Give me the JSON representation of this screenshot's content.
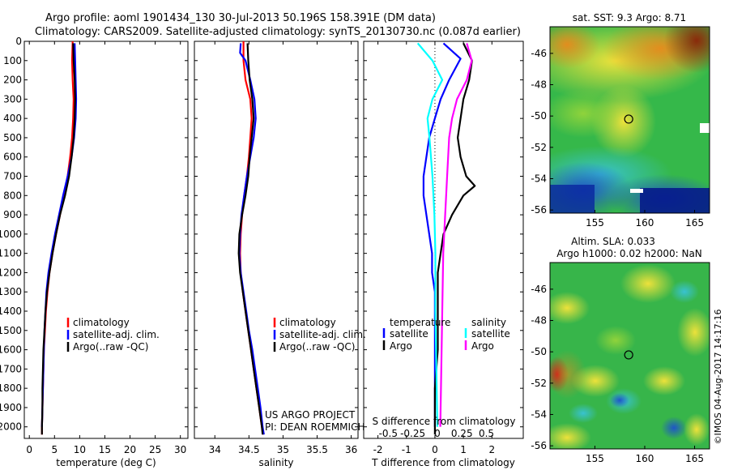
{
  "header": {
    "line1": "Argo profile: aoml 1901434_130 30-Jul-2013 50.196S 158.391E (DM data)",
    "line2": "Climatology: CARS2009. Satellite-adjusted climatology: synTS_20130730.nc (0.087d earlier)"
  },
  "credit": "©IMOS 04-Aug-2017 14:17:16",
  "project": {
    "line1": "US ARGO PROJECT",
    "line2": "PI: DEAN ROEMMICH"
  },
  "colors": {
    "red": "#ff0000",
    "blue": "#0000ff",
    "black": "#000000",
    "cyan": "#00ffff",
    "magenta": "#ff00ff"
  },
  "depth_ticks": [
    0,
    100,
    200,
    300,
    400,
    500,
    600,
    700,
    800,
    900,
    1000,
    1100,
    1200,
    1300,
    1400,
    1500,
    1600,
    1700,
    1800,
    1900,
    2000
  ],
  "chart_data": [
    {
      "type": "line",
      "id": "temperature",
      "xlabel": "temperature (deg C)",
      "xlim": [
        -1,
        31.5
      ],
      "ylim": [
        0,
        2060
      ],
      "y_reversed": true,
      "xticks": [
        0,
        5,
        10,
        15,
        20,
        25,
        30
      ],
      "legend": [
        "climatology",
        "satellite-adj. clim.",
        "Argo(..raw -QC)"
      ],
      "legend_placement": "lower-center",
      "series": [
        {
          "name": "climatology",
          "color": "red",
          "points": [
            [
              8.6,
              0
            ],
            [
              8.5,
              100
            ],
            [
              8.6,
              200
            ],
            [
              8.8,
              300
            ],
            [
              8.7,
              400
            ],
            [
              8.5,
              500
            ],
            [
              8.1,
              600
            ],
            [
              7.6,
              700
            ],
            [
              6.9,
              800
            ],
            [
              6.1,
              900
            ],
            [
              5.3,
              1000
            ],
            [
              4.6,
              1100
            ],
            [
              4.0,
              1200
            ],
            [
              3.6,
              1300
            ],
            [
              3.3,
              1400
            ],
            [
              3.1,
              1500
            ],
            [
              2.9,
              1600
            ],
            [
              2.8,
              1700
            ],
            [
              2.7,
              1800
            ],
            [
              2.6,
              1900
            ],
            [
              2.5,
              2000
            ],
            [
              2.5,
              2040
            ]
          ]
        },
        {
          "name": "satellite-adj. clim.",
          "color": "blue",
          "points": [
            [
              9.0,
              10
            ],
            [
              9.1,
              100
            ],
            [
              9.2,
              200
            ],
            [
              9.3,
              300
            ],
            [
              9.2,
              400
            ],
            [
              8.9,
              500
            ],
            [
              8.4,
              600
            ],
            [
              7.6,
              700
            ],
            [
              6.7,
              800
            ],
            [
              5.9,
              900
            ],
            [
              5.1,
              1000
            ],
            [
              4.4,
              1100
            ],
            [
              3.8,
              1200
            ],
            [
              3.4,
              1300
            ],
            [
              3.2,
              1400
            ],
            [
              3.0,
              1500
            ],
            [
              2.9,
              1600
            ],
            [
              2.8,
              1700
            ],
            [
              2.7,
              1800
            ],
            [
              2.6,
              1900
            ],
            [
              2.5,
              2000
            ]
          ]
        },
        {
          "name": "Argo(..raw -QC)",
          "color": "black",
          "points": [
            [
              8.7,
              10
            ],
            [
              8.8,
              100
            ],
            [
              9.0,
              200
            ],
            [
              9.1,
              300
            ],
            [
              9.0,
              400
            ],
            [
              8.8,
              500
            ],
            [
              8.4,
              600
            ],
            [
              7.9,
              700
            ],
            [
              7.1,
              800
            ],
            [
              6.1,
              900
            ],
            [
              5.3,
              1000
            ],
            [
              4.6,
              1100
            ],
            [
              4.0,
              1200
            ],
            [
              3.5,
              1300
            ],
            [
              3.2,
              1400
            ],
            [
              3.0,
              1500
            ],
            [
              2.8,
              1600
            ],
            [
              2.7,
              1700
            ],
            [
              2.6,
              1800
            ],
            [
              2.6,
              1900
            ],
            [
              2.5,
              2000
            ],
            [
              2.5,
              2040
            ]
          ]
        }
      ]
    },
    {
      "type": "line",
      "id": "salinity",
      "xlabel": "salinity",
      "xlim": [
        33.7,
        36.1
      ],
      "ylim": [
        0,
        2060
      ],
      "y_reversed": true,
      "xticks": [
        34,
        34.5,
        35,
        35.5,
        36
      ],
      "xtick_labels": [
        "34",
        "34.5",
        "35",
        "35.5",
        "36"
      ],
      "legend": [
        "climatology",
        "satellite-adj. clim.",
        "Argo(..raw -QC)"
      ],
      "legend_placement": "lower-center",
      "series": [
        {
          "name": "climatology",
          "color": "red",
          "points": [
            [
              34.42,
              0
            ],
            [
              34.42,
              100
            ],
            [
              34.45,
              200
            ],
            [
              34.52,
              300
            ],
            [
              34.54,
              400
            ],
            [
              34.52,
              500
            ],
            [
              34.5,
              600
            ],
            [
              34.47,
              700
            ],
            [
              34.43,
              800
            ],
            [
              34.4,
              900
            ],
            [
              34.38,
              1000
            ],
            [
              34.37,
              1100
            ],
            [
              34.38,
              1200
            ],
            [
              34.41,
              1300
            ],
            [
              34.45,
              1400
            ],
            [
              34.49,
              1500
            ],
            [
              34.53,
              1600
            ],
            [
              34.57,
              1700
            ],
            [
              34.61,
              1800
            ],
            [
              34.65,
              1900
            ],
            [
              34.69,
              2000
            ],
            [
              34.71,
              2040
            ]
          ]
        },
        {
          "name": "satellite-adj. clim.",
          "color": "blue",
          "points": [
            [
              34.38,
              10
            ],
            [
              34.37,
              60
            ],
            [
              34.45,
              100
            ],
            [
              34.52,
              200
            ],
            [
              34.58,
              300
            ],
            [
              34.6,
              400
            ],
            [
              34.57,
              500
            ],
            [
              34.52,
              600
            ],
            [
              34.47,
              700
            ],
            [
              34.43,
              800
            ],
            [
              34.39,
              900
            ],
            [
              34.37,
              1000
            ],
            [
              34.36,
              1100
            ],
            [
              34.38,
              1200
            ],
            [
              34.42,
              1300
            ],
            [
              34.46,
              1400
            ],
            [
              34.5,
              1500
            ],
            [
              34.55,
              1600
            ],
            [
              34.59,
              1700
            ],
            [
              34.63,
              1800
            ],
            [
              34.67,
              1900
            ],
            [
              34.7,
              2000
            ],
            [
              34.72,
              2040
            ]
          ]
        },
        {
          "name": "Argo(..raw -QC)",
          "color": "black",
          "points": [
            [
              34.48,
              10
            ],
            [
              34.49,
              100
            ],
            [
              34.51,
              200
            ],
            [
              34.55,
              300
            ],
            [
              34.57,
              400
            ],
            [
              34.54,
              500
            ],
            [
              34.51,
              600
            ],
            [
              34.49,
              700
            ],
            [
              34.45,
              800
            ],
            [
              34.4,
              900
            ],
            [
              34.36,
              1000
            ],
            [
              34.35,
              1100
            ],
            [
              34.37,
              1200
            ],
            [
              34.41,
              1300
            ],
            [
              34.45,
              1400
            ],
            [
              34.49,
              1500
            ],
            [
              34.53,
              1600
            ],
            [
              34.57,
              1700
            ],
            [
              34.61,
              1800
            ],
            [
              34.65,
              1900
            ],
            [
              34.69,
              2000
            ],
            [
              34.7,
              2040
            ]
          ]
        }
      ]
    },
    {
      "type": "line",
      "id": "difference",
      "xlabel": "T difference from climatology",
      "top_label": "S difference from climatology",
      "xlim": [
        -2.5,
        3.1
      ],
      "ylim": [
        0,
        2060
      ],
      "y_reversed": true,
      "xticks": [
        -2,
        -1,
        0,
        1,
        2
      ],
      "top_ticks": [
        -0.5,
        -0.25,
        0,
        0.25,
        0.5
      ],
      "top_tick_labels": [
        "-0.5",
        "-0.25",
        "0",
        "0.25",
        "0.5"
      ],
      "legend_groups": [
        {
          "title": "temperature",
          "items": [
            "satellite",
            "Argo"
          ]
        },
        {
          "title": "salinity",
          "items": [
            "satellite",
            "Argo"
          ]
        }
      ],
      "series": [
        {
          "name": "temperature satellite",
          "color": "blue",
          "points": [
            [
              0.3,
              10
            ],
            [
              0.9,
              90
            ],
            [
              0.5,
              200
            ],
            [
              0.2,
              300
            ],
            [
              0.0,
              400
            ],
            [
              -0.2,
              500
            ],
            [
              -0.3,
              600
            ],
            [
              -0.4,
              700
            ],
            [
              -0.4,
              800
            ],
            [
              -0.3,
              900
            ],
            [
              -0.2,
              1000
            ],
            [
              -0.1,
              1100
            ],
            [
              -0.1,
              1200
            ],
            [
              0.0,
              1300
            ],
            [
              0.0,
              1400
            ],
            [
              0.0,
              1600
            ],
            [
              0.0,
              1800
            ],
            [
              0.0,
              2000
            ]
          ]
        },
        {
          "name": "temperature Argo",
          "color": "black",
          "points": [
            [
              1.0,
              10
            ],
            [
              1.3,
              100
            ],
            [
              1.2,
              200
            ],
            [
              1.0,
              300
            ],
            [
              0.9,
              400
            ],
            [
              0.8,
              500
            ],
            [
              0.9,
              600
            ],
            [
              1.1,
              700
            ],
            [
              1.4,
              750
            ],
            [
              1.0,
              800
            ],
            [
              0.6,
              900
            ],
            [
              0.3,
              1000
            ],
            [
              0.2,
              1100
            ],
            [
              0.1,
              1200
            ],
            [
              0.1,
              1400
            ],
            [
              0.1,
              1600
            ],
            [
              0.0,
              1800
            ],
            [
              0.0,
              2040
            ]
          ]
        },
        {
          "name": "salinity satellite",
          "color": "cyan",
          "points": [
            [
              -0.2,
              10
            ],
            [
              -0.05,
              100
            ],
            [
              0.05,
              200
            ],
            [
              -0.05,
              300
            ],
            [
              -0.1,
              400
            ],
            [
              -0.08,
              500
            ],
            [
              -0.05,
              700
            ],
            [
              -0.03,
              900
            ],
            [
              -0.02,
              1100
            ],
            [
              -0.02,
              1400
            ],
            [
              -0.01,
              1700
            ],
            [
              0.0,
              2000
            ]
          ]
        },
        {
          "name": "salinity Argo",
          "color": "magenta",
          "points": [
            [
              0.3,
              10
            ],
            [
              0.35,
              100
            ],
            [
              0.3,
              200
            ],
            [
              0.2,
              300
            ],
            [
              0.15,
              400
            ],
            [
              0.12,
              500
            ],
            [
              0.1,
              700
            ],
            [
              0.08,
              900
            ],
            [
              0.06,
              1100
            ],
            [
              0.05,
              1400
            ],
            [
              0.04,
              1700
            ],
            [
              0.03,
              2000
            ]
          ]
        }
      ]
    }
  ],
  "maps": [
    {
      "id": "sst-map",
      "title": "sat. SST: 9.3 Argo: 8.71",
      "lon_ticks": [
        155,
        160,
        165
      ],
      "lat_ticks": [
        -46,
        -48,
        -50,
        -52,
        -54,
        -56
      ],
      "lon_range": [
        150.5,
        166.5
      ],
      "lat_range": [
        -56.2,
        -44.3
      ],
      "argo_position": {
        "lat": -50.196,
        "lon": 158.391
      }
    },
    {
      "id": "sla-map",
      "title_line1": "Altim. SLA: 0.033",
      "title_line2": "Argo h1000: 0.02 h2000: NaN",
      "lon_ticks": [
        155,
        160,
        165
      ],
      "lat_ticks": [
        -46,
        -48,
        -50,
        -52,
        -54,
        -56
      ],
      "lon_range": [
        150.5,
        166.5
      ],
      "lat_range": [
        -56.2,
        -44.3
      ],
      "argo_position": {
        "lat": -50.196,
        "lon": 158.391
      }
    }
  ]
}
